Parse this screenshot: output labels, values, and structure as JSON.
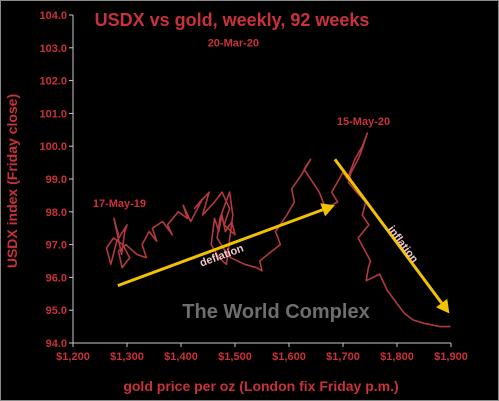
{
  "chart_data": {
    "type": "line",
    "title": "USDX vs gold, weekly, 92 weeks",
    "xlabel": "gold price per oz (London fix Friday p.m.)",
    "ylabel": "USDX index (Friday close)",
    "xlim": [
      1200,
      1900
    ],
    "ylim": [
      94.0,
      104.0
    ],
    "x_ticks": [
      1200,
      1300,
      1400,
      1500,
      1600,
      1700,
      1800,
      1900
    ],
    "x_tick_labels": [
      "$1,200",
      "$1,300",
      "$1,400",
      "$1,500",
      "$1,600",
      "$1,700",
      "$1,800",
      "$1,900"
    ],
    "y_ticks": [
      94,
      95,
      96,
      97,
      98,
      99,
      100,
      101,
      102,
      103,
      104
    ],
    "y_tick_labels": [
      "94.0",
      "95.0",
      "96.0",
      "97.0",
      "98.0",
      "99.0",
      "100.0",
      "101.0",
      "102.0",
      "103.0",
      "104.0"
    ],
    "grid": false,
    "legend": "none",
    "colors": {
      "background": "#000000",
      "text": "#c8323a",
      "series": "#b23a3f",
      "arrow": "#f2c200",
      "arrow_label": "#f0c8c8",
      "watermark": "#6e6e6e",
      "axis": "#c8c8c8"
    },
    "series": [
      {
        "x": [
          1284,
          1276,
          1290,
          1296,
          1300,
          1281,
          1270,
          1262,
          1275,
          1292,
          1305,
          1291,
          1284,
          1298,
          1318,
          1336,
          1328,
          1341,
          1355,
          1347,
          1366,
          1384,
          1375,
          1395,
          1412,
          1404,
          1418,
          1440,
          1425,
          1452,
          1440,
          1462,
          1476,
          1490,
          1480,
          1500,
          1494,
          1482,
          1476,
          1470,
          1462,
          1456,
          1470,
          1484,
          1496,
          1490,
          1472,
          1467,
          1478,
          1492,
          1518,
          1540,
          1550,
          1546,
          1568,
          1584,
          1575,
          1596,
          1610,
          1605,
          1622,
          1640,
          1628,
          1656,
          1668,
          1690,
          1679,
          1700,
          1708,
          1722,
          1736,
          1745,
          1733,
          1728,
          1715,
          1710,
          1725,
          1742,
          1736,
          1748,
          1728,
          1738,
          1751,
          1747,
          1743,
          1768,
          1782,
          1800,
          1814,
          1830,
          1850,
          1880,
          1898
        ],
        "y": [
          97.3,
          97.8,
          96.7,
          97.4,
          97.6,
          97.1,
          96.4,
          96.9,
          97.2,
          97.0,
          96.6,
          96.3,
          96.8,
          97.0,
          96.7,
          96.6,
          97.0,
          97.4,
          97.1,
          97.5,
          97.7,
          97.3,
          97.6,
          98.0,
          97.8,
          98.2,
          97.7,
          98.4,
          98.1,
          98.6,
          97.9,
          98.3,
          98.6,
          98.1,
          97.6,
          97.3,
          97.7,
          97.4,
          97.9,
          97.4,
          97.8,
          97.0,
          96.6,
          96.4,
          97.9,
          98.6,
          97.8,
          97.2,
          96.9,
          96.6,
          96.4,
          96.3,
          96.2,
          96.5,
          96.8,
          97.0,
          97.4,
          97.9,
          98.3,
          98.7,
          99.1,
          99.6,
          99.3,
          98.6,
          98.1,
          98.3,
          98.6,
          99.2,
          99.0,
          99.6,
          100.0,
          100.4,
          99.8,
          99.6,
          99.2,
          98.9,
          98.6,
          98.3,
          97.9,
          97.6,
          97.2,
          96.9,
          96.5,
          96.3,
          95.9,
          96.1,
          95.6,
          95.2,
          94.9,
          94.7,
          94.6,
          94.5,
          94.5
        ]
      }
    ],
    "annotations": [
      {
        "text": "20-Mar-20",
        "x": 1497,
        "y": 102.8
      },
      {
        "text": "15-May-20",
        "x": 1738,
        "y": 100.4
      },
      {
        "text": "17-May-19",
        "x": 1286,
        "y": 97.9
      }
    ],
    "arrows": [
      {
        "label": "deflation",
        "from": [
          1283,
          95.75
        ],
        "to": [
          1685,
          98.2
        ]
      },
      {
        "label": "inflation",
        "from": [
          1685,
          99.6
        ],
        "to": [
          1897,
          94.9
        ]
      }
    ],
    "watermark": "The World Complex"
  }
}
